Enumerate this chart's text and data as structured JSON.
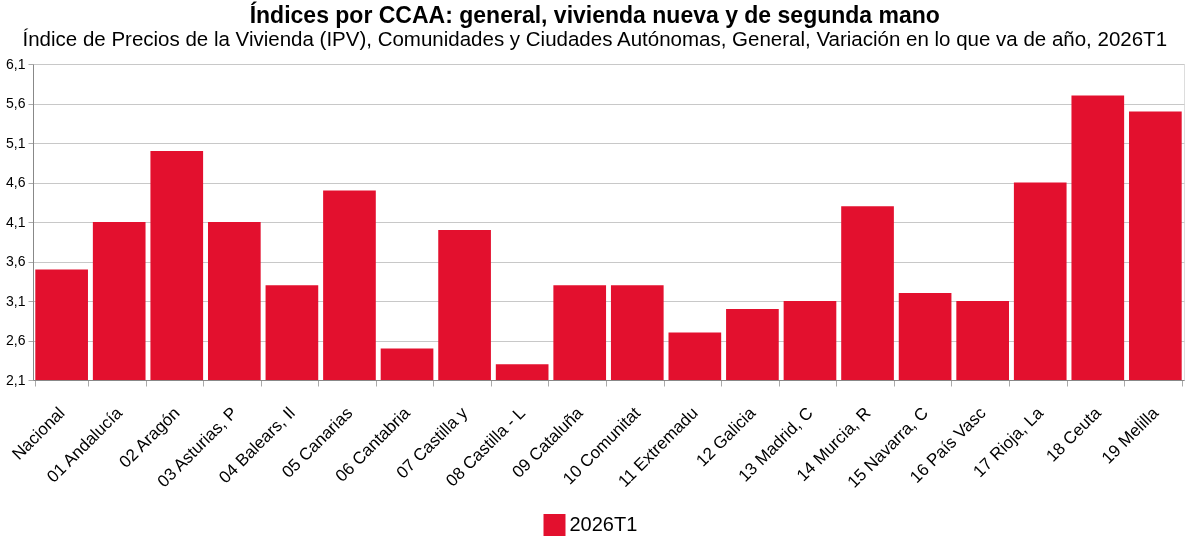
{
  "chart_data": {
    "type": "bar",
    "title": "Índices por CCAA: general, vivienda nueva y de segunda mano",
    "subtitle": "Índice de Precios de la Vivienda (IPV), Comunidades y Ciudades Autónomas, General, Variación en lo que va de año, 2026T1",
    "categories": [
      "Nacional",
      "01 Andalucía",
      "02 Aragón",
      "03 Asturias, P",
      "04 Balears, Il",
      "05 Canarias",
      "06 Cantabria",
      "07 Castilla y",
      "08 Castilla - L",
      "09 Cataluña",
      "10 Comunitat",
      "11 Extremadu",
      "12 Galicia",
      "13 Madrid, C",
      "14 Murcia, R",
      "15 Navarra, C",
      "16 País Vasc",
      "17 Rioja, La",
      "18 Ceuta",
      "19 Melilla"
    ],
    "series": [
      {
        "name": "2026T1",
        "color": "#e3102e",
        "values": [
          3.5,
          4.1,
          5.0,
          4.1,
          3.3,
          4.5,
          2.5,
          4.0,
          2.3,
          3.3,
          3.3,
          2.7,
          3.0,
          3.1,
          4.3,
          3.2,
          3.1,
          4.6,
          5.7,
          5.5
        ]
      }
    ],
    "ylim": [
      2.1,
      6.1
    ],
    "yticks": [
      {
        "value": 2.1,
        "label": "2,1"
      },
      {
        "value": 2.6,
        "label": "2,6"
      },
      {
        "value": 3.1,
        "label": "3,1"
      },
      {
        "value": 3.6,
        "label": "3,6"
      },
      {
        "value": 4.1,
        "label": "4,1"
      },
      {
        "value": 4.6,
        "label": "4,6"
      },
      {
        "value": 5.1,
        "label": "5,1"
      },
      {
        "value": 5.6,
        "label": "5,6"
      },
      {
        "value": 6.1,
        "label": "6,1"
      }
    ],
    "grid": "y",
    "legend": "bottom"
  }
}
